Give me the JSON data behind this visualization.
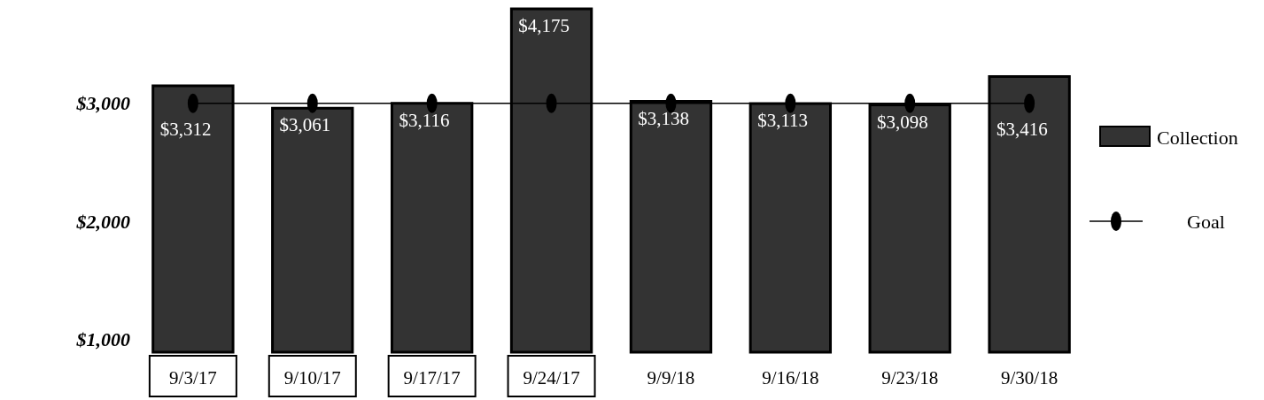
{
  "chart_data": {
    "type": "bar",
    "categories": [
      "9/3/17",
      "9/10/17",
      "9/17/17",
      "9/24/17",
      "9/9/18",
      "9/16/18",
      "9/23/18",
      "9/30/18"
    ],
    "series": [
      {
        "name": "Collection",
        "axis": "y2",
        "color": "#333333",
        "values": [
          3312,
          3061,
          3116,
          4175,
          3138,
          3113,
          3098,
          3416
        ],
        "value_labels": [
          "$3,312",
          "$3,061",
          "$3,116",
          "$4,175",
          "$3,138",
          "$3,113",
          "$3,098",
          "$3,416"
        ]
      },
      {
        "name": "Goal",
        "type": "line",
        "color": "#000000",
        "marker": "circle",
        "values": [
          3000,
          3000,
          3000,
          3000,
          3000,
          3000,
          3000,
          3000
        ]
      }
    ],
    "ylim": [
      890,
      3800
    ],
    "yticks": [
      {
        "value": 1000,
        "label": "$1,000"
      },
      {
        "value": 2000,
        "label": "$2,000"
      },
      {
        "value": 3000,
        "label": "$3,000"
      }
    ],
    "y2lim": [
      325,
      4175
    ],
    "tick_labels": "xy",
    "grid": false,
    "legend": "right"
  }
}
